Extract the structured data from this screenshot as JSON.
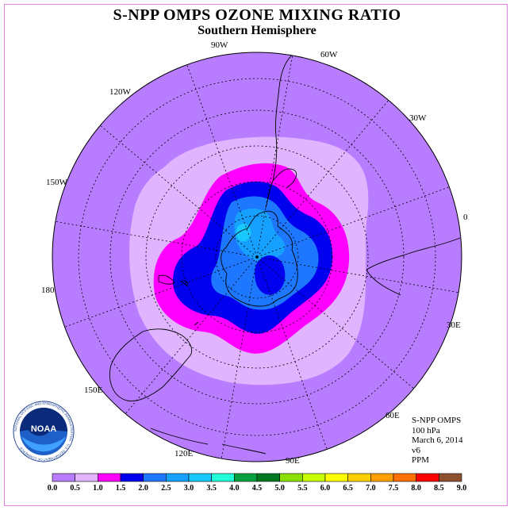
{
  "title": "S-NPP OMPS OZONE MIXING RATIO",
  "subtitle": "Southern Hemisphere",
  "meridian_labels": {
    "m90w": "90W",
    "m60w": "60W",
    "m30w": "30W",
    "m0": "0",
    "m30e": "30E",
    "m60e": "60E",
    "m90e": "90E",
    "m120e": "120E",
    "m150e": "150E",
    "m180": "180",
    "m150w": "150W",
    "m120w": "120W"
  },
  "info": {
    "instrument": "S-NPP OMPS",
    "level": "100 hPa",
    "date": "March 6, 2014",
    "version": "v6",
    "units": "PPM"
  },
  "logo": {
    "text": "NOAA",
    "ring_text": "NATIONAL OCEANIC AND ATMOSPHERIC ADMINISTRATION · U.S. DEPARTMENT OF COMMERCE"
  },
  "colorbar": {
    "ticks": [
      "0.0",
      "0.5",
      "1.0",
      "1.5",
      "2.0",
      "2.5",
      "3.0",
      "3.5",
      "4.0",
      "4.5",
      "5.0",
      "5.5",
      "6.0",
      "6.5",
      "7.0",
      "7.5",
      "8.0",
      "8.5",
      "9.0"
    ],
    "colors": [
      "#b87cff",
      "#e0b4ff",
      "#ff00ff",
      "#0000ee",
      "#1e78ff",
      "#16a0ff",
      "#18c8ff",
      "#20ffd8",
      "#00a040",
      "#007820",
      "#8ce000",
      "#c8ff00",
      "#ffff00",
      "#ffd000",
      "#ffa000",
      "#ff7000",
      "#ff0000",
      "#8c5030"
    ]
  },
  "map_colors": {
    "background": "#b87cff",
    "level_0_5": "#e0b4ff",
    "level_1_0": "#ff00ff",
    "level_1_5": "#0000ee",
    "level_2_0": "#1e78ff",
    "level_2_5": "#16a0ff",
    "level_3_0": "#18c8ff"
  }
}
